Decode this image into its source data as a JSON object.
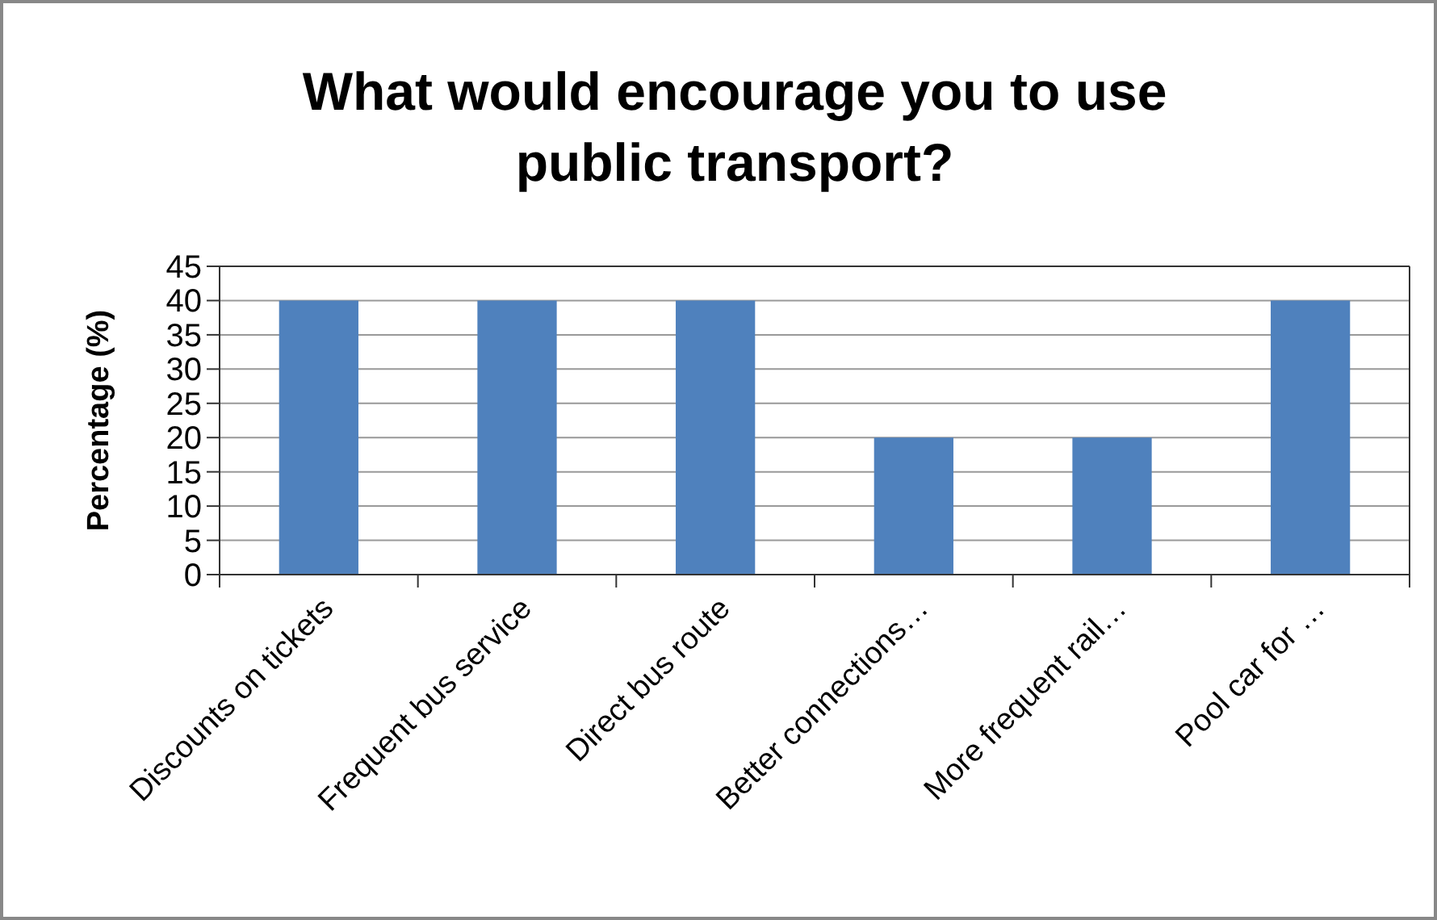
{
  "chart_data": {
    "type": "bar",
    "title": "What would encourage you to use public transport?",
    "ylabel": "Percentage (%)",
    "categories": [
      "Discounts on tickets",
      "Frequent bus service",
      "Direct bus route",
      "Better connections…",
      "More frequent rail…",
      "Pool car for …"
    ],
    "values": [
      40,
      40,
      40,
      20,
      20,
      40
    ],
    "color": "#4f81bd",
    "ylim": [
      0,
      45
    ],
    "yticks": [
      0,
      5,
      10,
      15,
      20,
      25,
      30,
      35,
      40,
      45
    ],
    "grid": "y"
  }
}
